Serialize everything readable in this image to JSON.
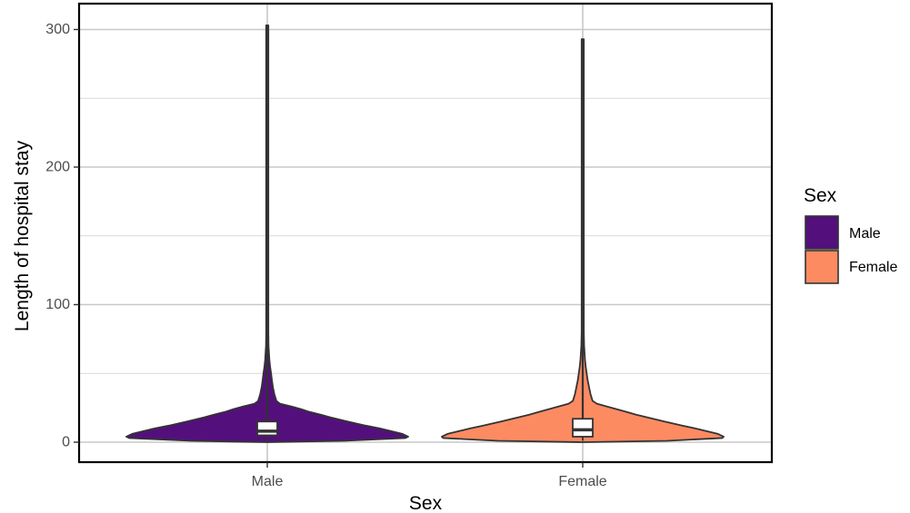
{
  "chart_data": {
    "type": "violin",
    "xlabel": "Sex",
    "ylabel": "Length of hospital stay",
    "categories": [
      "Male",
      "Female"
    ],
    "ylim": [
      -14,
      316
    ],
    "yticks": [
      0,
      100,
      200,
      300
    ],
    "grid": true,
    "legend": {
      "title": "Sex",
      "placement": "right",
      "entries": [
        {
          "label": "Male",
          "color": "#53107C"
        },
        {
          "label": "Female",
          "color": "#FC8B62"
        }
      ]
    },
    "series": [
      {
        "name": "Male",
        "color": "#53107C",
        "min": 0,
        "max": 303,
        "box": {
          "q1": 5,
          "median": 8,
          "q3": 15,
          "whisker_low": 1,
          "whisker_high": 80
        },
        "density": [
          [
            0,
            0.0
          ],
          [
            1,
            0.54
          ],
          [
            3,
            0.98
          ],
          [
            4,
            1.0
          ],
          [
            6,
            0.96
          ],
          [
            8,
            0.88
          ],
          [
            10,
            0.8
          ],
          [
            12,
            0.7
          ],
          [
            15,
            0.57
          ],
          [
            18,
            0.45
          ],
          [
            20,
            0.38
          ],
          [
            22,
            0.3
          ],
          [
            24,
            0.24
          ],
          [
            26,
            0.17
          ],
          [
            28,
            0.09
          ],
          [
            30,
            0.065
          ],
          [
            35,
            0.05
          ],
          [
            40,
            0.04
          ],
          [
            45,
            0.033
          ],
          [
            50,
            0.027
          ],
          [
            55,
            0.02
          ],
          [
            60,
            0.015
          ],
          [
            70,
            0.009
          ],
          [
            80,
            0.006
          ],
          [
            90,
            0.004
          ],
          [
            120,
            0.0025
          ],
          [
            200,
            0.0018
          ],
          [
            303,
            0.0012
          ]
        ]
      },
      {
        "name": "Female",
        "color": "#FC8B62",
        "min": 0,
        "max": 293,
        "box": {
          "q1": 4,
          "median": 9,
          "q3": 17,
          "whisker_low": 1,
          "whisker_high": 36
        },
        "density": [
          [
            0,
            0.0
          ],
          [
            1,
            0.6
          ],
          [
            3,
            0.99
          ],
          [
            4,
            1.0
          ],
          [
            6,
            0.96
          ],
          [
            8,
            0.88
          ],
          [
            10,
            0.8
          ],
          [
            12,
            0.71
          ],
          [
            15,
            0.58
          ],
          [
            18,
            0.46
          ],
          [
            20,
            0.38
          ],
          [
            22,
            0.31
          ],
          [
            24,
            0.24
          ],
          [
            26,
            0.17
          ],
          [
            28,
            0.1
          ],
          [
            30,
            0.07
          ],
          [
            35,
            0.055
          ],
          [
            40,
            0.045
          ],
          [
            45,
            0.035
          ],
          [
            50,
            0.028
          ],
          [
            55,
            0.021
          ],
          [
            60,
            0.016
          ],
          [
            70,
            0.01
          ],
          [
            80,
            0.006
          ],
          [
            90,
            0.004
          ],
          [
            120,
            0.0025
          ],
          [
            200,
            0.0018
          ],
          [
            293,
            0.0012
          ]
        ]
      }
    ]
  }
}
